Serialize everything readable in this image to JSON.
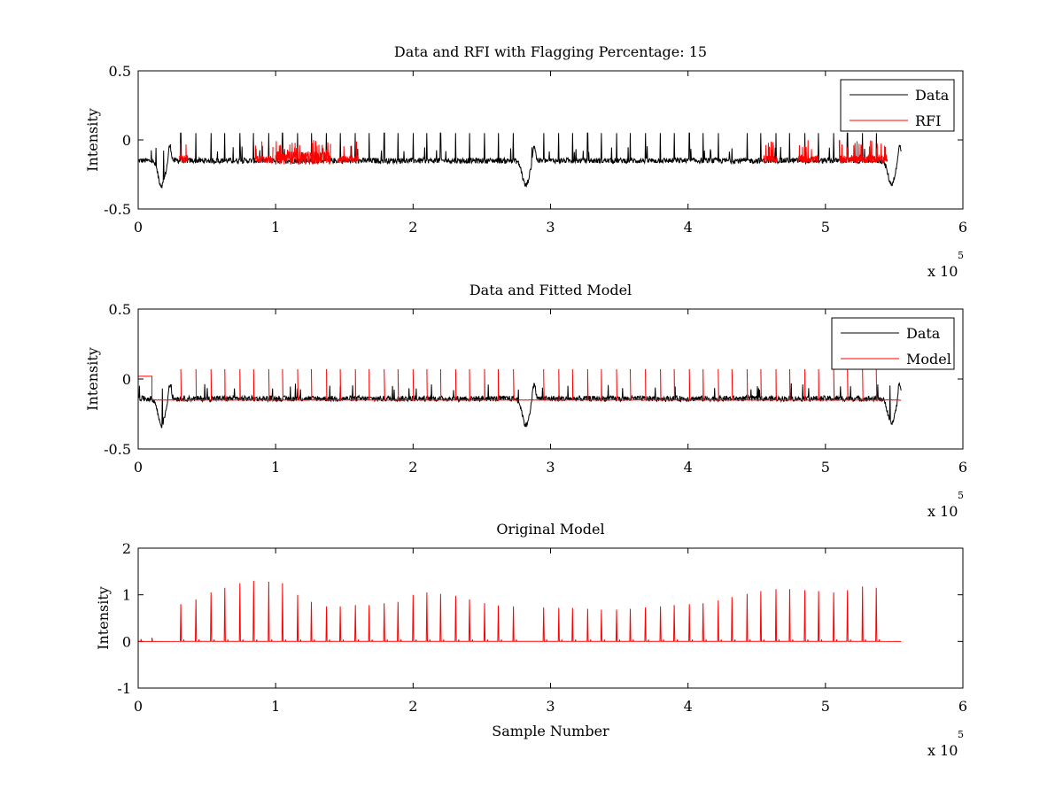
{
  "chart_data": [
    {
      "type": "line",
      "title": "Data and RFI with Flagging Percentage: 15",
      "xlabel": "",
      "ylabel": "Intensity",
      "xlim": [
        0,
        6
      ],
      "ylim": [
        -0.5,
        0.5
      ],
      "x_multiplier": "x 10",
      "x_multiplier_exponent": "5",
      "xticks": [
        "0",
        "1",
        "2",
        "3",
        "4",
        "5",
        "6"
      ],
      "yticks": [
        "-0.5",
        "0",
        "0.5"
      ],
      "legend": {
        "position": "top-right",
        "entries": [
          "Data",
          "RFI"
        ]
      },
      "series": [
        {
          "name": "Data",
          "color": "#000000",
          "baseline": -0.15,
          "noise": 0.02,
          "x_end": 5.55,
          "dips": [
            {
              "x": 0.17,
              "depth": -0.33
            },
            {
              "x": 2.82,
              "depth": -0.33
            },
            {
              "x": 5.48,
              "depth": -0.32
            }
          ],
          "spikes_x": [
            0.31,
            0.42,
            0.53,
            0.63,
            0.74,
            0.84,
            0.95,
            1.05,
            1.16,
            1.26,
            1.37,
            1.47,
            1.58,
            1.68,
            1.79,
            1.89,
            2.0,
            2.1,
            2.2,
            2.31,
            2.41,
            2.52,
            2.62,
            2.73,
            2.95,
            3.06,
            3.16,
            3.27,
            3.37,
            3.48,
            3.58,
            3.69,
            3.8,
            3.9,
            4.01,
            4.11,
            4.22,
            4.32,
            4.43,
            4.53,
            4.64,
            4.74,
            4.85,
            4.95,
            5.06,
            5.16,
            5.27,
            5.37
          ],
          "spike_peak": 0.05
        },
        {
          "name": "RFI",
          "color": "#ff0000",
          "segments": [
            [
              0.3,
              0.36
            ],
            [
              0.85,
              0.98
            ],
            [
              1.0,
              1.4
            ],
            [
              1.45,
              1.6
            ],
            [
              4.55,
              4.65
            ],
            [
              4.8,
              4.95
            ],
            [
              5.1,
              5.45
            ]
          ]
        }
      ]
    },
    {
      "type": "line",
      "title": "Data and Fitted Model",
      "xlabel": "",
      "ylabel": "Intensity",
      "xlim": [
        0,
        6
      ],
      "ylim": [
        -0.5,
        0.5
      ],
      "x_multiplier": "x 10",
      "x_multiplier_exponent": "5",
      "xticks": [
        "0",
        "1",
        "2",
        "3",
        "4",
        "5",
        "6"
      ],
      "yticks": [
        "-0.5",
        "0",
        "0.5"
      ],
      "legend": {
        "position": "top-right",
        "entries": [
          "Data",
          "Model"
        ]
      },
      "series": [
        {
          "name": "Data",
          "color": "#000000",
          "baseline": -0.14,
          "noise": 0.02,
          "x_end": 5.55,
          "dips": [
            {
              "x": 0.17,
              "depth": -0.33
            },
            {
              "x": 2.82,
              "depth": -0.33
            },
            {
              "x": 5.48,
              "depth": -0.32
            }
          ]
        },
        {
          "name": "Model",
          "color": "#ff0000",
          "baseline": -0.15,
          "x_end": 5.55,
          "start_level": 0.02,
          "spikes_x": [
            0.31,
            0.42,
            0.53,
            0.63,
            0.74,
            0.84,
            0.95,
            1.05,
            1.16,
            1.26,
            1.37,
            1.47,
            1.58,
            1.68,
            1.79,
            1.89,
            2.0,
            2.1,
            2.2,
            2.31,
            2.41,
            2.52,
            2.62,
            2.73,
            2.95,
            3.06,
            3.16,
            3.27,
            3.37,
            3.48,
            3.58,
            3.69,
            3.8,
            3.9,
            4.01,
            4.11,
            4.22,
            4.32,
            4.43,
            4.53,
            4.64,
            4.74,
            4.85,
            4.95,
            5.06,
            5.16,
            5.27,
            5.37
          ],
          "spike_peak": 0.07
        }
      ]
    },
    {
      "type": "line",
      "title": "Original Model",
      "xlabel": "Sample Number",
      "ylabel": "Intensity",
      "xlim": [
        0,
        6
      ],
      "ylim": [
        -1,
        2
      ],
      "x_multiplier": "x 10",
      "x_multiplier_exponent": "5",
      "xticks": [
        "0",
        "1",
        "2",
        "3",
        "4",
        "5",
        "6"
      ],
      "yticks": [
        "-1",
        "0",
        "1",
        "2"
      ],
      "series": [
        {
          "name": "",
          "color": "#ff0000",
          "baseline": 0,
          "x_end": 5.55,
          "spikes_x": [
            0.31,
            0.42,
            0.53,
            0.63,
            0.74,
            0.84,
            0.95,
            1.05,
            1.16,
            1.26,
            1.37,
            1.47,
            1.58,
            1.68,
            1.79,
            1.89,
            2.0,
            2.1,
            2.2,
            2.31,
            2.41,
            2.52,
            2.62,
            2.73,
            2.95,
            3.06,
            3.16,
            3.27,
            3.37,
            3.48,
            3.58,
            3.69,
            3.8,
            3.9,
            4.01,
            4.11,
            4.22,
            4.32,
            4.43,
            4.53,
            4.64,
            4.74,
            4.85,
            4.95,
            5.06,
            5.16,
            5.27,
            5.37
          ],
          "spikes_y": [
            0.8,
            0.9,
            1.05,
            1.15,
            1.25,
            1.3,
            1.28,
            1.25,
            1.0,
            0.85,
            0.75,
            0.75,
            0.78,
            0.78,
            0.82,
            0.85,
            1.0,
            1.05,
            1.02,
            0.98,
            0.9,
            0.82,
            0.77,
            0.75,
            0.73,
            0.72,
            0.72,
            0.7,
            0.68,
            0.68,
            0.7,
            0.73,
            0.75,
            0.78,
            0.8,
            0.82,
            0.88,
            0.95,
            1.02,
            1.08,
            1.12,
            1.12,
            1.1,
            1.08,
            1.05,
            1.1,
            1.18,
            1.15
          ]
        }
      ]
    }
  ]
}
